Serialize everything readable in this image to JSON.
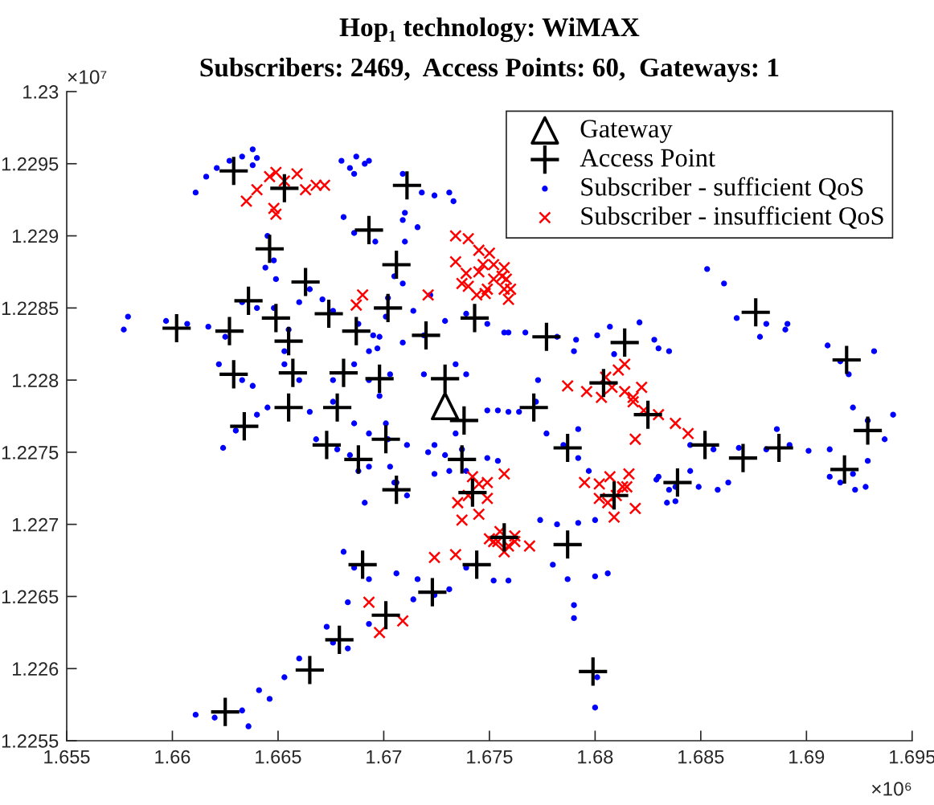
{
  "chart_data": {
    "type": "scatter",
    "title": "Hop₁ technology: WiMAX",
    "subtitle": "Subscribers: 2469,  Access Points: 60,  Gateways: 1",
    "annotations": [
      "×10⁷",
      "×10⁶"
    ],
    "xlim": [
      1.655,
      1.695
    ],
    "ylim": [
      1.2255,
      1.23
    ],
    "xticks": [
      1.655,
      1.66,
      1.665,
      1.67,
      1.675,
      1.68,
      1.685,
      1.69,
      1.695
    ],
    "yticks": [
      1.2255,
      1.226,
      1.2265,
      1.227,
      1.2275,
      1.228,
      1.2285,
      1.229,
      1.2295,
      1.23
    ],
    "legend": "top right",
    "series": [
      {
        "name": "Gateway",
        "color": "#000000",
        "marker": "triangle",
        "x": [
          1.6729
        ],
        "values": [
          1.22782
        ]
      },
      {
        "name": "Access Point",
        "color": "#000000",
        "marker": "plus",
        "x": [
          1.6629,
          1.6653,
          1.6711,
          1.6693,
          1.6646,
          1.6706,
          1.6663,
          1.6636,
          1.6649,
          1.6674,
          1.6602,
          1.6627,
          1.6687,
          1.6743,
          1.672,
          1.6655,
          1.6681,
          1.6657,
          1.6698,
          1.6629,
          1.6729,
          1.6738,
          1.6678,
          1.6655,
          1.6634,
          1.6673,
          1.6688,
          1.6701,
          1.6737,
          1.6706,
          1.669,
          1.6744,
          1.6723,
          1.6701,
          1.6679,
          1.6665,
          1.6625,
          1.6787,
          1.6799,
          1.6839,
          1.6809,
          1.6918,
          1.6876,
          1.6777,
          1.6814,
          1.6919,
          1.6771,
          1.6825,
          1.6804,
          1.6787,
          1.6852,
          1.687,
          1.6887,
          1.6929,
          1.6742,
          1.6757,
          1.6702
        ],
        "values": [
          1.22945,
          1.22933,
          1.22935,
          1.22904,
          1.22891,
          1.2288,
          1.22868,
          1.22855,
          1.22843,
          1.22846,
          1.22836,
          1.22834,
          1.22834,
          1.22843,
          1.22831,
          1.22827,
          1.22805,
          1.22805,
          1.22801,
          1.22804,
          1.22801,
          1.22772,
          1.22781,
          1.22781,
          1.22768,
          1.22755,
          1.22745,
          1.22759,
          1.22745,
          1.22724,
          1.22672,
          1.22672,
          1.22653,
          1.22637,
          1.2262,
          1.22599,
          1.2257,
          1.22686,
          1.22598,
          1.22729,
          1.2272,
          1.22738,
          1.22847,
          1.2283,
          1.22826,
          1.22814,
          1.22781,
          1.22776,
          1.22798,
          1.22753,
          1.22755,
          1.22746,
          1.22753,
          1.22765,
          1.22722,
          1.22691,
          1.2285
        ]
      },
      {
        "name": "Subscriber - sufficient QoS",
        "color": "#0000ff",
        "marker": "circle",
        "x": [
          1.6611,
          1.6616,
          1.6621,
          1.6627,
          1.6633,
          1.6638,
          1.664,
          1.6638,
          1.668,
          1.6684,
          1.6687,
          1.6691,
          1.6693,
          1.6686,
          1.6718,
          1.6724,
          1.6731,
          1.6733,
          1.6709,
          1.671,
          1.6645,
          1.6648,
          1.6644,
          1.6649,
          1.6681,
          1.6686,
          1.6696,
          1.6709,
          1.671,
          1.6716,
          1.6705,
          1.6702,
          1.6701,
          1.6698,
          1.6697,
          1.6665,
          1.6671,
          1.6633,
          1.664,
          1.6648,
          1.666,
          1.6676,
          1.6688,
          1.6695,
          1.6709,
          1.6719,
          1.6729,
          1.6739,
          1.6749,
          1.6759,
          1.6577,
          1.6579,
          1.6597,
          1.6607,
          1.6617,
          1.6625,
          1.6622,
          1.6633,
          1.6638,
          1.6653,
          1.6655,
          1.6653,
          1.666,
          1.6676,
          1.6686,
          1.6693,
          1.6693,
          1.6703,
          1.6698,
          1.6701,
          1.6702,
          1.6703,
          1.6706,
          1.6645,
          1.664,
          1.663,
          1.6624,
          1.6665,
          1.6676,
          1.6686,
          1.6693,
          1.6668,
          1.6678,
          1.6684,
          1.6693,
          1.6711,
          1.6721,
          1.6719,
          1.6734,
          1.6739,
          1.6749,
          1.6759,
          1.6734,
          1.6737,
          1.6739,
          1.6749,
          1.6754,
          1.6724,
          1.6729,
          1.6722,
          1.6714,
          1.6709,
          1.6757,
          1.6767,
          1.6782,
          1.6791,
          1.679,
          1.6801,
          1.6807,
          1.6821,
          1.6809,
          1.6828,
          1.6835,
          1.683,
          1.6853,
          1.6861,
          1.6867,
          1.6881,
          1.689,
          1.6878,
          1.6891,
          1.691,
          1.6916,
          1.692,
          1.6932,
          1.6922,
          1.6929,
          1.6941,
          1.6937,
          1.6911,
          1.6922,
          1.6929,
          1.6916,
          1.6901,
          1.6845,
          1.6856,
          1.6868,
          1.6881,
          1.6892,
          1.6886,
          1.6754,
          1.6764,
          1.6772,
          1.6773,
          1.6777,
          1.6785,
          1.6792,
          1.6792,
          1.6797,
          1.683,
          1.6838,
          1.6845,
          1.6688,
          1.6705,
          1.6711,
          1.6691,
          1.6724,
          1.6731,
          1.6681,
          1.6686,
          1.6693,
          1.6706,
          1.6716,
          1.6724,
          1.6731,
          1.6683,
          1.6693,
          1.6673,
          1.6676,
          1.6683,
          1.666,
          1.6653,
          1.6646,
          1.6641,
          1.6611,
          1.662,
          1.6633,
          1.6636,
          1.6739,
          1.6752,
          1.6759,
          1.6714,
          1.6774,
          1.6782,
          1.6792,
          1.68,
          1.678,
          1.6787,
          1.68,
          1.6806,
          1.679,
          1.679,
          1.6801,
          1.68,
          1.6829,
          1.6835,
          1.6849,
          1.6858,
          1.6838,
          1.6863,
          1.6834,
          1.6911,
          1.6923,
          1.6928
        ],
        "values": [
          1.2293,
          1.22941,
          1.22947,
          1.22952,
          1.22955,
          1.2296,
          1.22954,
          1.22949,
          1.22952,
          1.22947,
          1.22955,
          1.2295,
          1.22952,
          1.22943,
          1.2293,
          1.22928,
          1.2293,
          1.22924,
          1.22943,
          1.22916,
          1.229,
          1.22883,
          1.22878,
          1.2287,
          1.22913,
          1.22902,
          1.22896,
          1.22911,
          1.22896,
          1.22906,
          1.22872,
          1.22857,
          1.22844,
          1.2283,
          1.22822,
          1.22863,
          1.22856,
          1.22854,
          1.2285,
          1.2285,
          1.22854,
          1.22848,
          1.22839,
          1.22831,
          1.22826,
          1.22831,
          1.22841,
          1.22846,
          1.22839,
          1.22833,
          1.22835,
          1.22844,
          1.22841,
          1.22839,
          1.22837,
          1.2283,
          1.22811,
          1.228,
          1.22796,
          1.2282,
          1.22835,
          1.22811,
          1.228,
          1.228,
          1.22811,
          1.2282,
          1.228,
          1.22804,
          1.22789,
          1.2277,
          1.22759,
          1.2274,
          1.22729,
          1.22781,
          1.22776,
          1.22765,
          1.22753,
          1.22778,
          1.22785,
          1.2277,
          1.22763,
          1.22759,
          1.22752,
          1.22748,
          1.2274,
          1.22755,
          1.2275,
          1.22804,
          1.22811,
          1.22804,
          1.22779,
          1.22778,
          1.22763,
          1.22752,
          1.22737,
          1.22746,
          1.22744,
          1.22755,
          1.22748,
          1.22859,
          1.22848,
          1.22867,
          1.22833,
          1.22833,
          1.2283,
          1.22828,
          1.2282,
          1.22831,
          1.22837,
          1.2284,
          1.22818,
          1.22828,
          1.2282,
          1.22822,
          1.22877,
          1.22867,
          1.22843,
          1.22839,
          1.22835,
          1.2283,
          1.22839,
          1.22824,
          1.22813,
          1.22804,
          1.2282,
          1.22781,
          1.22772,
          1.22776,
          1.22759,
          1.22752,
          1.22735,
          1.22744,
          1.22729,
          1.22751,
          1.22755,
          1.22752,
          1.22753,
          1.22752,
          1.22755,
          1.22766,
          1.22779,
          1.22778,
          1.22785,
          1.228,
          1.22763,
          1.22755,
          1.22766,
          1.22746,
          1.22737,
          1.22733,
          1.22726,
          1.22737,
          1.22737,
          1.22729,
          1.2272,
          1.22715,
          1.22735,
          1.22737,
          1.22681,
          1.2267,
          1.22662,
          1.22666,
          1.22662,
          1.22651,
          1.22655,
          1.22646,
          1.22631,
          1.22629,
          1.22618,
          1.22614,
          1.22607,
          1.22594,
          1.22579,
          1.22585,
          1.22568,
          1.22566,
          1.22571,
          1.2256,
          1.2267,
          1.22661,
          1.22661,
          1.22648,
          1.22703,
          1.227,
          1.22701,
          1.22703,
          1.22672,
          1.22662,
          1.22664,
          1.22666,
          1.22644,
          1.22635,
          1.22594,
          1.22573,
          1.22731,
          1.22724,
          1.22726,
          1.22724,
          1.22716,
          1.22729,
          1.22715,
          1.22733,
          1.22724,
          1.22726
        ]
      },
      {
        "name": "Subscriber - insufficient QoS",
        "color": "#ff0000",
        "marker": "cross",
        "x": [
          1.6635,
          1.664,
          1.6646,
          1.6649,
          1.6648,
          1.6653,
          1.6659,
          1.6663,
          1.6668,
          1.6672,
          1.6649,
          1.6734,
          1.674,
          1.6734,
          1.6739,
          1.6747,
          1.6752,
          1.6757,
          1.6759,
          1.6744,
          1.6749,
          1.6737,
          1.6757,
          1.669,
          1.6687,
          1.6721,
          1.6742,
          1.6749,
          1.6757,
          1.6756,
          1.676,
          1.6787,
          1.6796,
          1.6805,
          1.6811,
          1.6814,
          1.6818,
          1.6823,
          1.683,
          1.6838,
          1.6844,
          1.6819,
          1.6814,
          1.6795,
          1.6807,
          1.6815,
          1.6749,
          1.6737,
          1.6745,
          1.6752,
          1.6759,
          1.6724,
          1.6734,
          1.6693,
          1.6698,
          1.6709,
          1.6754,
          1.6762,
          1.6769,
          1.6757,
          1.6802,
          1.6813,
          1.6819,
          1.6809,
          1.6745,
          1.675,
          1.6745,
          1.6752,
          1.674,
          1.6758,
          1.6748,
          1.6808,
          1.6818,
          1.6822,
          1.6803,
          1.6802,
          1.681,
          1.6816,
          1.6806,
          1.6755,
          1.6762,
          1.675,
          1.674,
          1.6745,
          1.6735
        ],
        "values": [
          1.22924,
          1.22932,
          1.22941,
          1.22944,
          1.22919,
          1.22938,
          1.22943,
          1.22932,
          1.22935,
          1.22935,
          1.22915,
          1.229,
          1.22898,
          1.22882,
          1.22874,
          1.2288,
          1.2287,
          1.22863,
          1.22856,
          1.22859,
          1.22863,
          1.22867,
          1.22878,
          1.22859,
          1.22852,
          1.22859,
          1.22733,
          1.22729,
          1.22735,
          1.22872,
          1.22863,
          1.22796,
          1.22792,
          1.22802,
          1.22807,
          1.22792,
          1.22785,
          1.22779,
          1.22776,
          1.2277,
          1.22763,
          1.22759,
          1.22811,
          1.22729,
          1.22733,
          1.22726,
          1.22718,
          1.22703,
          1.22707,
          1.22688,
          1.22685,
          1.22677,
          1.22679,
          1.22646,
          1.22625,
          1.22633,
          1.22688,
          1.22692,
          1.22685,
          1.22681,
          1.22718,
          1.22726,
          1.22711,
          1.22705,
          1.2289,
          1.22888,
          1.22875,
          1.2288,
          1.22865,
          1.2287,
          1.2286,
          1.22795,
          1.22788,
          1.22795,
          1.22788,
          1.22728,
          1.2272,
          1.22735,
          1.22715,
          1.22695,
          1.22688,
          1.2269,
          1.2272,
          1.22728,
          1.22715
        ]
      }
    ]
  }
}
